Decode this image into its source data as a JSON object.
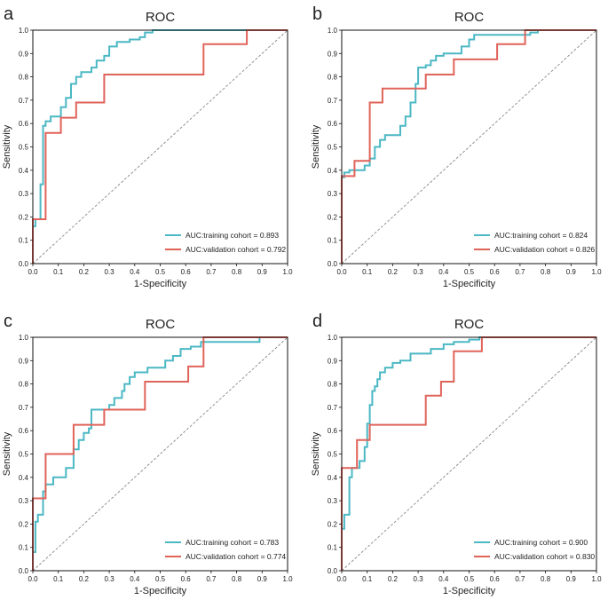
{
  "figure": {
    "background": "#ffffff"
  },
  "colors": {
    "training": "#4bb8c4",
    "validation": "#e0635a",
    "diagonal": "#888888",
    "axis": "#111111"
  },
  "chart_data": [
    {
      "panel": "a",
      "type": "line",
      "title": "ROC",
      "xlabel": "1-Specificity",
      "ylabel": "Sensitivity",
      "xlim": [
        0,
        1
      ],
      "ylim": [
        0,
        1
      ],
      "ticks": [
        "0.0",
        "0.1",
        "0.2",
        "0.3",
        "0.4",
        "0.5",
        "0.6",
        "0.7",
        "0.8",
        "0.9",
        "1.0"
      ],
      "legend_position": "bottom-right",
      "series": [
        {
          "name": "AUC:training cohort = 0.893",
          "color": "#4bb8c4",
          "points": [
            [
              0,
              0
            ],
            [
              0,
              0.16
            ],
            [
              0.01,
              0.16
            ],
            [
              0.01,
              0.19
            ],
            [
              0.03,
              0.19
            ],
            [
              0.03,
              0.34
            ],
            [
              0.04,
              0.34
            ],
            [
              0.04,
              0.59
            ],
            [
              0.05,
              0.59
            ],
            [
              0.05,
              0.61
            ],
            [
              0.07,
              0.61
            ],
            [
              0.07,
              0.63
            ],
            [
              0.11,
              0.63
            ],
            [
              0.11,
              0.67
            ],
            [
              0.13,
              0.67
            ],
            [
              0.13,
              0.71
            ],
            [
              0.15,
              0.71
            ],
            [
              0.15,
              0.77
            ],
            [
              0.17,
              0.77
            ],
            [
              0.17,
              0.8
            ],
            [
              0.19,
              0.8
            ],
            [
              0.19,
              0.82
            ],
            [
              0.23,
              0.82
            ],
            [
              0.23,
              0.84
            ],
            [
              0.25,
              0.84
            ],
            [
              0.25,
              0.87
            ],
            [
              0.28,
              0.87
            ],
            [
              0.28,
              0.89
            ],
            [
              0.3,
              0.89
            ],
            [
              0.3,
              0.93
            ],
            [
              0.33,
              0.93
            ],
            [
              0.33,
              0.95
            ],
            [
              0.38,
              0.95
            ],
            [
              0.38,
              0.96
            ],
            [
              0.42,
              0.96
            ],
            [
              0.42,
              0.97
            ],
            [
              0.44,
              0.97
            ],
            [
              0.44,
              0.99
            ],
            [
              0.47,
              0.99
            ],
            [
              0.47,
              1.0
            ],
            [
              0.83,
              1.0
            ],
            [
              1.0,
              1.0
            ]
          ]
        },
        {
          "name": "AUC:validation cohort = 0.792",
          "color": "#e0635a",
          "points": [
            [
              0,
              0
            ],
            [
              0,
              0.19
            ],
            [
              0.05,
              0.19
            ],
            [
              0.05,
              0.56
            ],
            [
              0.11,
              0.56
            ],
            [
              0.11,
              0.625
            ],
            [
              0.17,
              0.625
            ],
            [
              0.17,
              0.69
            ],
            [
              0.28,
              0.69
            ],
            [
              0.28,
              0.81
            ],
            [
              0.67,
              0.81
            ],
            [
              0.67,
              0.94
            ],
            [
              0.84,
              0.94
            ],
            [
              0.84,
              1.0
            ],
            [
              1.0,
              1.0
            ]
          ]
        }
      ]
    },
    {
      "panel": "b",
      "type": "line",
      "title": "ROC",
      "xlabel": "1-Specificity",
      "ylabel": "Sensitivity",
      "xlim": [
        0,
        1
      ],
      "ylim": [
        0,
        1
      ],
      "ticks": [
        "0.0",
        "0.1",
        "0.2",
        "0.3",
        "0.4",
        "0.5",
        "0.6",
        "0.7",
        "0.8",
        "0.9",
        "1.0"
      ],
      "legend_position": "bottom-right",
      "series": [
        {
          "name": "AUC:training cohort = 0.824",
          "color": "#4bb8c4",
          "points": [
            [
              0,
              0
            ],
            [
              0,
              0.37
            ],
            [
              0.01,
              0.37
            ],
            [
              0.01,
              0.39
            ],
            [
              0.03,
              0.39
            ],
            [
              0.03,
              0.4
            ],
            [
              0.09,
              0.4
            ],
            [
              0.09,
              0.42
            ],
            [
              0.11,
              0.42
            ],
            [
              0.11,
              0.45
            ],
            [
              0.13,
              0.45
            ],
            [
              0.13,
              0.5
            ],
            [
              0.15,
              0.5
            ],
            [
              0.15,
              0.53
            ],
            [
              0.17,
              0.53
            ],
            [
              0.17,
              0.55
            ],
            [
              0.23,
              0.55
            ],
            [
              0.23,
              0.59
            ],
            [
              0.25,
              0.59
            ],
            [
              0.25,
              0.63
            ],
            [
              0.27,
              0.63
            ],
            [
              0.27,
              0.69
            ],
            [
              0.29,
              0.69
            ],
            [
              0.29,
              0.77
            ],
            [
              0.3,
              0.77
            ],
            [
              0.3,
              0.84
            ],
            [
              0.33,
              0.84
            ],
            [
              0.33,
              0.85
            ],
            [
              0.35,
              0.85
            ],
            [
              0.35,
              0.87
            ],
            [
              0.37,
              0.87
            ],
            [
              0.37,
              0.89
            ],
            [
              0.4,
              0.89
            ],
            [
              0.4,
              0.9
            ],
            [
              0.47,
              0.9
            ],
            [
              0.47,
              0.93
            ],
            [
              0.5,
              0.93
            ],
            [
              0.5,
              0.96
            ],
            [
              0.52,
              0.96
            ],
            [
              0.52,
              0.98
            ],
            [
              0.74,
              0.98
            ],
            [
              0.74,
              0.99
            ],
            [
              0.77,
              0.99
            ],
            [
              0.77,
              1.0
            ],
            [
              1.0,
              1.0
            ]
          ]
        },
        {
          "name": "AUC:validation cohort = 0.826",
          "color": "#e0635a",
          "points": [
            [
              0,
              0
            ],
            [
              0,
              0.375
            ],
            [
              0.05,
              0.375
            ],
            [
              0.05,
              0.44
            ],
            [
              0.11,
              0.44
            ],
            [
              0.11,
              0.69
            ],
            [
              0.16,
              0.69
            ],
            [
              0.16,
              0.75
            ],
            [
              0.33,
              0.75
            ],
            [
              0.33,
              0.81
            ],
            [
              0.44,
              0.81
            ],
            [
              0.44,
              0.875
            ],
            [
              0.61,
              0.875
            ],
            [
              0.61,
              0.94
            ],
            [
              0.72,
              0.94
            ],
            [
              0.72,
              1.0
            ],
            [
              1.0,
              1.0
            ]
          ]
        }
      ]
    },
    {
      "panel": "c",
      "type": "line",
      "title": "ROC",
      "xlabel": "1-Specificity",
      "ylabel": "Sensitivity",
      "xlim": [
        0,
        1
      ],
      "ylim": [
        0,
        1
      ],
      "ticks": [
        "0.0",
        "0.1",
        "0.2",
        "0.3",
        "0.4",
        "0.5",
        "0.6",
        "0.7",
        "0.8",
        "0.9",
        "1.0"
      ],
      "legend_position": "bottom-right",
      "series": [
        {
          "name": "AUC:training cohort = 0.783",
          "color": "#4bb8c4",
          "points": [
            [
              0,
              0
            ],
            [
              0,
              0.08
            ],
            [
              0.01,
              0.08
            ],
            [
              0.01,
              0.21
            ],
            [
              0.02,
              0.21
            ],
            [
              0.02,
              0.24
            ],
            [
              0.04,
              0.24
            ],
            [
              0.04,
              0.34
            ],
            [
              0.05,
              0.34
            ],
            [
              0.05,
              0.37
            ],
            [
              0.08,
              0.37
            ],
            [
              0.08,
              0.4
            ],
            [
              0.13,
              0.4
            ],
            [
              0.13,
              0.44
            ],
            [
              0.16,
              0.44
            ],
            [
              0.16,
              0.52
            ],
            [
              0.18,
              0.52
            ],
            [
              0.18,
              0.56
            ],
            [
              0.2,
              0.56
            ],
            [
              0.2,
              0.59
            ],
            [
              0.22,
              0.59
            ],
            [
              0.22,
              0.61
            ],
            [
              0.23,
              0.61
            ],
            [
              0.23,
              0.69
            ],
            [
              0.3,
              0.69
            ],
            [
              0.3,
              0.71
            ],
            [
              0.32,
              0.71
            ],
            [
              0.32,
              0.74
            ],
            [
              0.35,
              0.74
            ],
            [
              0.35,
              0.77
            ],
            [
              0.36,
              0.77
            ],
            [
              0.36,
              0.8
            ],
            [
              0.38,
              0.8
            ],
            [
              0.38,
              0.83
            ],
            [
              0.4,
              0.83
            ],
            [
              0.4,
              0.85
            ],
            [
              0.45,
              0.85
            ],
            [
              0.45,
              0.87
            ],
            [
              0.52,
              0.87
            ],
            [
              0.52,
              0.9
            ],
            [
              0.55,
              0.9
            ],
            [
              0.55,
              0.92
            ],
            [
              0.58,
              0.92
            ],
            [
              0.58,
              0.95
            ],
            [
              0.62,
              0.95
            ],
            [
              0.62,
              0.96
            ],
            [
              0.66,
              0.96
            ],
            [
              0.66,
              0.98
            ],
            [
              0.89,
              0.98
            ],
            [
              0.89,
              1.0
            ],
            [
              1.0,
              1.0
            ]
          ]
        },
        {
          "name": "AUC:validation cohort = 0.774",
          "color": "#e0635a",
          "points": [
            [
              0,
              0
            ],
            [
              0,
              0.31
            ],
            [
              0.05,
              0.31
            ],
            [
              0.05,
              0.5
            ],
            [
              0.16,
              0.5
            ],
            [
              0.16,
              0.625
            ],
            [
              0.28,
              0.625
            ],
            [
              0.28,
              0.69
            ],
            [
              0.44,
              0.69
            ],
            [
              0.44,
              0.81
            ],
            [
              0.61,
              0.81
            ],
            [
              0.61,
              0.875
            ],
            [
              0.67,
              0.875
            ],
            [
              0.67,
              1.0
            ],
            [
              1.0,
              1.0
            ]
          ]
        }
      ]
    },
    {
      "panel": "d",
      "type": "line",
      "title": "ROC",
      "xlabel": "1-Specificity",
      "ylabel": "Sensitivity",
      "xlim": [
        0,
        1
      ],
      "ylim": [
        0,
        1
      ],
      "ticks": [
        "0.0",
        "0.1",
        "0.2",
        "0.3",
        "0.4",
        "0.5",
        "0.6",
        "0.7",
        "0.8",
        "0.9",
        "1.0"
      ],
      "legend_position": "bottom-right",
      "series": [
        {
          "name": "AUC:training cohort = 0.900",
          "color": "#4bb8c4",
          "points": [
            [
              0,
              0
            ],
            [
              0,
              0.18
            ],
            [
              0.01,
              0.18
            ],
            [
              0.01,
              0.24
            ],
            [
              0.03,
              0.24
            ],
            [
              0.03,
              0.4
            ],
            [
              0.04,
              0.4
            ],
            [
              0.04,
              0.44
            ],
            [
              0.07,
              0.44
            ],
            [
              0.07,
              0.47
            ],
            [
              0.09,
              0.47
            ],
            [
              0.09,
              0.53
            ],
            [
              0.1,
              0.53
            ],
            [
              0.1,
              0.63
            ],
            [
              0.11,
              0.63
            ],
            [
              0.11,
              0.71
            ],
            [
              0.12,
              0.71
            ],
            [
              0.12,
              0.77
            ],
            [
              0.13,
              0.77
            ],
            [
              0.13,
              0.79
            ],
            [
              0.14,
              0.79
            ],
            [
              0.14,
              0.82
            ],
            [
              0.15,
              0.82
            ],
            [
              0.15,
              0.85
            ],
            [
              0.17,
              0.85
            ],
            [
              0.17,
              0.87
            ],
            [
              0.2,
              0.87
            ],
            [
              0.2,
              0.89
            ],
            [
              0.23,
              0.89
            ],
            [
              0.23,
              0.9
            ],
            [
              0.27,
              0.9
            ],
            [
              0.27,
              0.93
            ],
            [
              0.35,
              0.93
            ],
            [
              0.35,
              0.95
            ],
            [
              0.4,
              0.95
            ],
            [
              0.4,
              0.97
            ],
            [
              0.44,
              0.97
            ],
            [
              0.44,
              0.98
            ],
            [
              0.5,
              0.98
            ],
            [
              0.5,
              0.99
            ],
            [
              0.54,
              0.99
            ],
            [
              0.54,
              1.0
            ],
            [
              1.0,
              1.0
            ]
          ]
        },
        {
          "name": "AUC:validation cohort = 0.830",
          "color": "#e0635a",
          "points": [
            [
              0,
              0
            ],
            [
              0,
              0.44
            ],
            [
              0.06,
              0.44
            ],
            [
              0.06,
              0.56
            ],
            [
              0.11,
              0.56
            ],
            [
              0.11,
              0.625
            ],
            [
              0.33,
              0.625
            ],
            [
              0.33,
              0.75
            ],
            [
              0.39,
              0.75
            ],
            [
              0.39,
              0.81
            ],
            [
              0.44,
              0.81
            ],
            [
              0.44,
              0.94
            ],
            [
              0.55,
              0.94
            ],
            [
              0.55,
              1.0
            ],
            [
              1.0,
              1.0
            ]
          ]
        }
      ]
    }
  ]
}
